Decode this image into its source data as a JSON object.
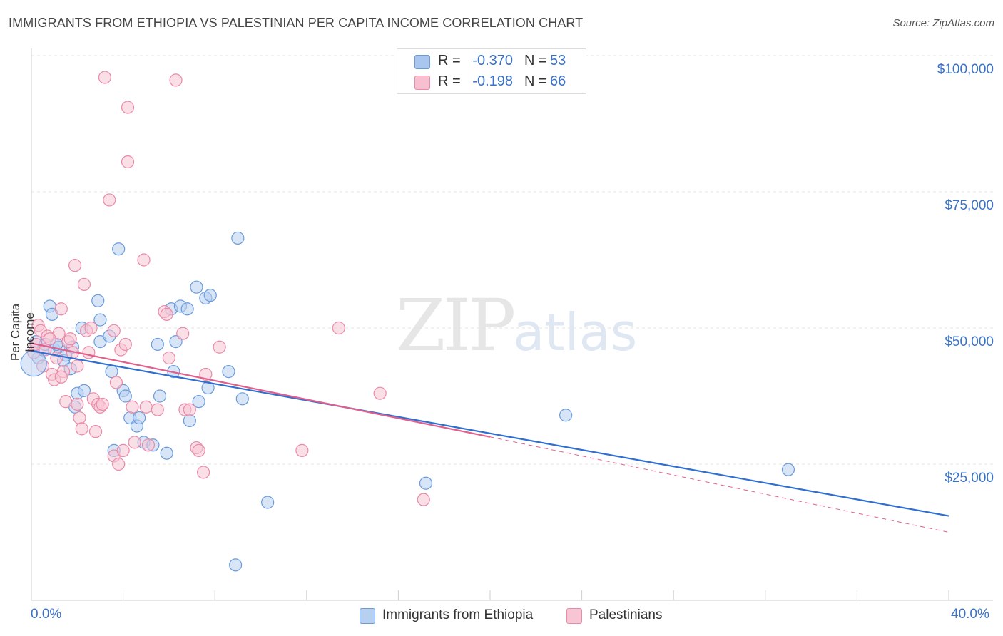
{
  "title": "IMMIGRANTS FROM ETHIOPIA VS PALESTINIAN PER CAPITA INCOME CORRELATION CHART",
  "source": "Source: ZipAtlas.com",
  "watermark": {
    "zip": "ZIP",
    "atlas": "atlas"
  },
  "legend_top": [
    {
      "r_label": "R =",
      "r_value": "-0.370",
      "n_label": "N =",
      "n_value": "53",
      "color": "#a9c6ef",
      "border": "#6a9bdc"
    },
    {
      "r_label": "R =",
      "r_value": "-0.198",
      "n_label": "N =",
      "n_value": "66",
      "color": "#f7c0d0",
      "border": "#ea8aa8"
    }
  ],
  "chart_data": {
    "type": "scatter",
    "title": "IMMIGRANTS FROM ETHIOPIA VS PALESTINIAN PER CAPITA INCOME CORRELATION CHART",
    "xlabel": "",
    "ylabel": "Per Capita Income",
    "xlim": [
      0,
      40
    ],
    "ylim": [
      0,
      105000
    ],
    "x_tick_labels": [
      "0.0%",
      "40.0%"
    ],
    "y_ticks": [
      25000,
      50000,
      75000,
      100000
    ],
    "y_tick_labels": [
      "$25,000",
      "$50,000",
      "$75,000",
      "$100,000"
    ],
    "grid": true,
    "series": [
      {
        "name": "Immigrants from Ethiopia",
        "color": "#6a9bdc",
        "fill": "#b7cff1",
        "line_color": "#2f6fd1",
        "trend": {
          "x": [
            0,
            40
          ],
          "y": [
            45800,
            15500
          ]
        },
        "points": [
          [
            0.2,
            47500
          ],
          [
            0.3,
            44500
          ],
          [
            0.5,
            46000
          ],
          [
            0.6,
            47000
          ],
          [
            0.8,
            54000
          ],
          [
            0.9,
            52500
          ],
          [
            1.0,
            46000
          ],
          [
            1.2,
            46500
          ],
          [
            1.4,
            44000
          ],
          [
            1.5,
            45000
          ],
          [
            1.7,
            42500
          ],
          [
            1.8,
            46500
          ],
          [
            1.9,
            35500
          ],
          [
            2.0,
            38000
          ],
          [
            2.2,
            50000
          ],
          [
            2.3,
            38500
          ],
          [
            2.9,
            55000
          ],
          [
            3.0,
            51500
          ],
          [
            3.0,
            47500
          ],
          [
            3.4,
            48500
          ],
          [
            3.5,
            42000
          ],
          [
            3.8,
            64500
          ],
          [
            4.0,
            38500
          ],
          [
            4.1,
            37500
          ],
          [
            4.3,
            33500
          ],
          [
            4.6,
            32000
          ],
          [
            4.7,
            33500
          ],
          [
            4.9,
            29000
          ],
          [
            5.3,
            28500
          ],
          [
            5.5,
            47000
          ],
          [
            5.6,
            37500
          ],
          [
            5.9,
            27000
          ],
          [
            6.1,
            53500
          ],
          [
            6.2,
            42000
          ],
          [
            6.3,
            47500
          ],
          [
            6.5,
            54000
          ],
          [
            6.8,
            53500
          ],
          [
            6.9,
            33000
          ],
          [
            7.2,
            57500
          ],
          [
            7.3,
            36500
          ],
          [
            7.6,
            55500
          ],
          [
            7.8,
            56000
          ],
          [
            7.7,
            39000
          ],
          [
            8.6,
            42000
          ],
          [
            8.9,
            6500
          ],
          [
            9.0,
            66500
          ],
          [
            9.2,
            37000
          ],
          [
            10.3,
            18000
          ],
          [
            17.2,
            21500
          ],
          [
            23.3,
            34000
          ],
          [
            33.0,
            24000
          ],
          [
            3.6,
            27500
          ],
          [
            1.1,
            47000
          ]
        ]
      },
      {
        "name": "Palestinians",
        "color": "#ea8aa8",
        "fill": "#f8c5d4",
        "line_color": "#e25f8c",
        "trend": {
          "x": [
            0,
            20
          ],
          "y": [
            47200,
            30000
          ]
        },
        "trend_dashed": {
          "x": [
            20,
            40
          ],
          "y": [
            30000,
            12500
          ]
        },
        "points": [
          [
            0.1,
            45500
          ],
          [
            0.2,
            47000
          ],
          [
            0.3,
            50500
          ],
          [
            0.4,
            49500
          ],
          [
            0.5,
            43000
          ],
          [
            0.6,
            46000
          ],
          [
            0.7,
            48500
          ],
          [
            0.9,
            41500
          ],
          [
            1.0,
            40500
          ],
          [
            1.1,
            44500
          ],
          [
            1.2,
            49000
          ],
          [
            1.3,
            53500
          ],
          [
            1.4,
            42000
          ],
          [
            1.5,
            36500
          ],
          [
            1.6,
            47500
          ],
          [
            1.7,
            48000
          ],
          [
            1.8,
            45500
          ],
          [
            1.9,
            61500
          ],
          [
            2.0,
            36000
          ],
          [
            2.1,
            33500
          ],
          [
            2.2,
            31500
          ],
          [
            2.3,
            58000
          ],
          [
            2.4,
            49500
          ],
          [
            2.5,
            45500
          ],
          [
            2.6,
            50000
          ],
          [
            2.7,
            37000
          ],
          [
            2.8,
            31000
          ],
          [
            2.9,
            36000
          ],
          [
            3.0,
            35500
          ],
          [
            3.2,
            96000
          ],
          [
            3.4,
            73500
          ],
          [
            3.6,
            26500
          ],
          [
            3.6,
            49500
          ],
          [
            3.7,
            40000
          ],
          [
            3.8,
            25000
          ],
          [
            3.9,
            46000
          ],
          [
            4.0,
            27500
          ],
          [
            4.1,
            47000
          ],
          [
            4.2,
            90500
          ],
          [
            4.2,
            80500
          ],
          [
            4.5,
            29000
          ],
          [
            4.9,
            62500
          ],
          [
            5.0,
            35500
          ],
          [
            5.1,
            28500
          ],
          [
            5.5,
            35000
          ],
          [
            5.8,
            53000
          ],
          [
            5.9,
            52500
          ],
          [
            6.0,
            44500
          ],
          [
            6.3,
            95500
          ],
          [
            6.6,
            49000
          ],
          [
            6.7,
            35000
          ],
          [
            6.9,
            35000
          ],
          [
            7.2,
            28000
          ],
          [
            7.3,
            27500
          ],
          [
            7.5,
            23500
          ],
          [
            7.6,
            41500
          ],
          [
            8.2,
            46500
          ],
          [
            11.8,
            27500
          ],
          [
            13.4,
            50000
          ],
          [
            15.2,
            38000
          ],
          [
            17.1,
            18500
          ],
          [
            2.0,
            43000
          ],
          [
            1.3,
            41000
          ],
          [
            0.8,
            48000
          ],
          [
            4.4,
            35500
          ],
          [
            3.1,
            36000
          ]
        ]
      }
    ]
  },
  "legend_bottom": [
    {
      "label": "Immigrants from Ethiopia",
      "color": "#b7cff1",
      "border": "#6a9bdc"
    },
    {
      "label": "Palestinians",
      "color": "#f8c5d4",
      "border": "#ea8aa8"
    }
  ]
}
